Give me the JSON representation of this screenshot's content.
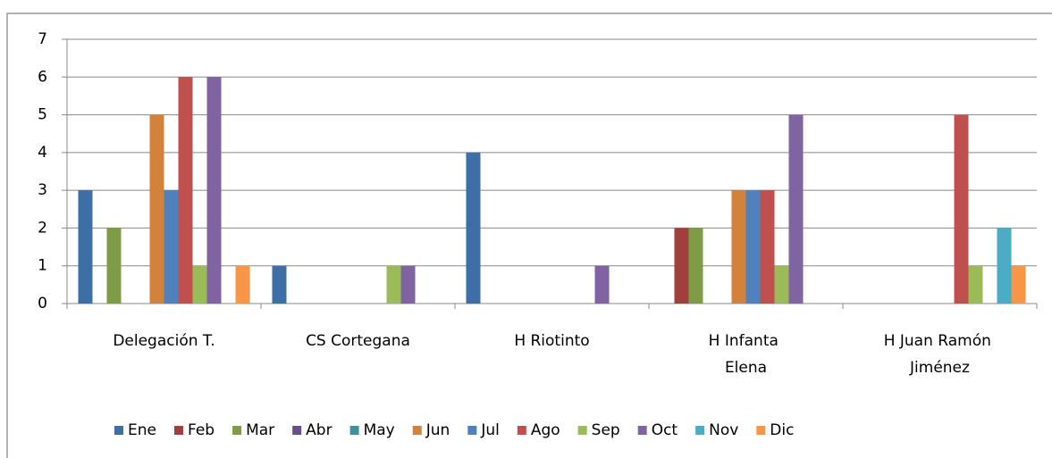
{
  "chart_data": {
    "type": "bar",
    "categories": [
      "Delegación T.",
      "CS Cortegana",
      "H Riotinto",
      "H Infanta Elena",
      "H Juan Ramón Jiménez"
    ],
    "series": [
      {
        "name": "Ene",
        "color": "#3d6fa6",
        "values": [
          3,
          1,
          4,
          0,
          0
        ]
      },
      {
        "name": "Feb",
        "color": "#a0403e",
        "values": [
          0,
          0,
          0,
          2,
          0
        ]
      },
      {
        "name": "Mar",
        "color": "#7f9b45",
        "values": [
          2,
          0,
          0,
          2,
          0
        ]
      },
      {
        "name": "Abr",
        "color": "#6b4d8a",
        "values": [
          0,
          0,
          0,
          0,
          0
        ]
      },
      {
        "name": "May",
        "color": "#3f8fa3",
        "values": [
          0,
          0,
          0,
          0,
          0
        ]
      },
      {
        "name": "Jun",
        "color": "#d3823b",
        "values": [
          5,
          0,
          0,
          3,
          0
        ]
      },
      {
        "name": "Jul",
        "color": "#4f81bd",
        "values": [
          3,
          0,
          0,
          3,
          0
        ]
      },
      {
        "name": "Ago",
        "color": "#c0504d",
        "values": [
          6,
          0,
          0,
          3,
          5
        ]
      },
      {
        "name": "Sep",
        "color": "#9bbb59",
        "values": [
          1,
          1,
          0,
          1,
          1
        ]
      },
      {
        "name": "Oct",
        "color": "#8064a2",
        "values": [
          6,
          1,
          1,
          5,
          0
        ]
      },
      {
        "name": "Nov",
        "color": "#4bacc6",
        "values": [
          0,
          0,
          0,
          0,
          2
        ]
      },
      {
        "name": "Dic",
        "color": "#f79646",
        "values": [
          1,
          0,
          0,
          0,
          1
        ]
      }
    ],
    "ylim": [
      0,
      7
    ],
    "yticks": [
      0,
      1,
      2,
      3,
      4,
      5,
      6,
      7
    ],
    "grid": true,
    "legend": "bottom"
  }
}
